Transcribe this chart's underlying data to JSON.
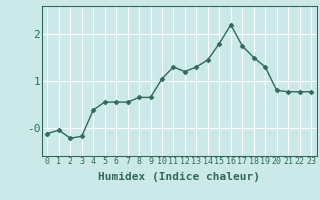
{
  "x": [
    0,
    1,
    2,
    3,
    4,
    5,
    6,
    7,
    8,
    9,
    10,
    11,
    12,
    13,
    14,
    15,
    16,
    17,
    18,
    19,
    20,
    21,
    22,
    23
  ],
  "y": [
    -0.12,
    -0.05,
    -0.22,
    -0.18,
    0.38,
    0.55,
    0.55,
    0.55,
    0.65,
    0.65,
    1.05,
    1.3,
    1.2,
    1.3,
    1.45,
    1.8,
    2.2,
    1.75,
    1.5,
    1.3,
    0.8,
    0.77,
    0.77,
    0.77
  ],
  "line_color": "#2e6b5e",
  "marker": "D",
  "markersize": 2.5,
  "linewidth": 1.0,
  "xlabel": "Humidex (Indice chaleur)",
  "xlabel_fontsize": 8,
  "xlabel_fontweight": "bold",
  "ylabel_ticks": [
    0,
    1,
    2
  ],
  "ytick_labels": [
    "-0",
    "1",
    "2"
  ],
  "ylim": [
    -0.6,
    2.6
  ],
  "xlim": [
    -0.5,
    23.5
  ],
  "bg_color": "#cce9e9",
  "grid_color": "#ffffff",
  "spine_color": "#2e6b5e",
  "tick_color": "#2e6b5e",
  "label_color": "#2e6b5e",
  "xtick_fontsize": 6,
  "ytick_fontsize": 8,
  "figwidth": 3.2,
  "figheight": 2.0,
  "dpi": 100
}
